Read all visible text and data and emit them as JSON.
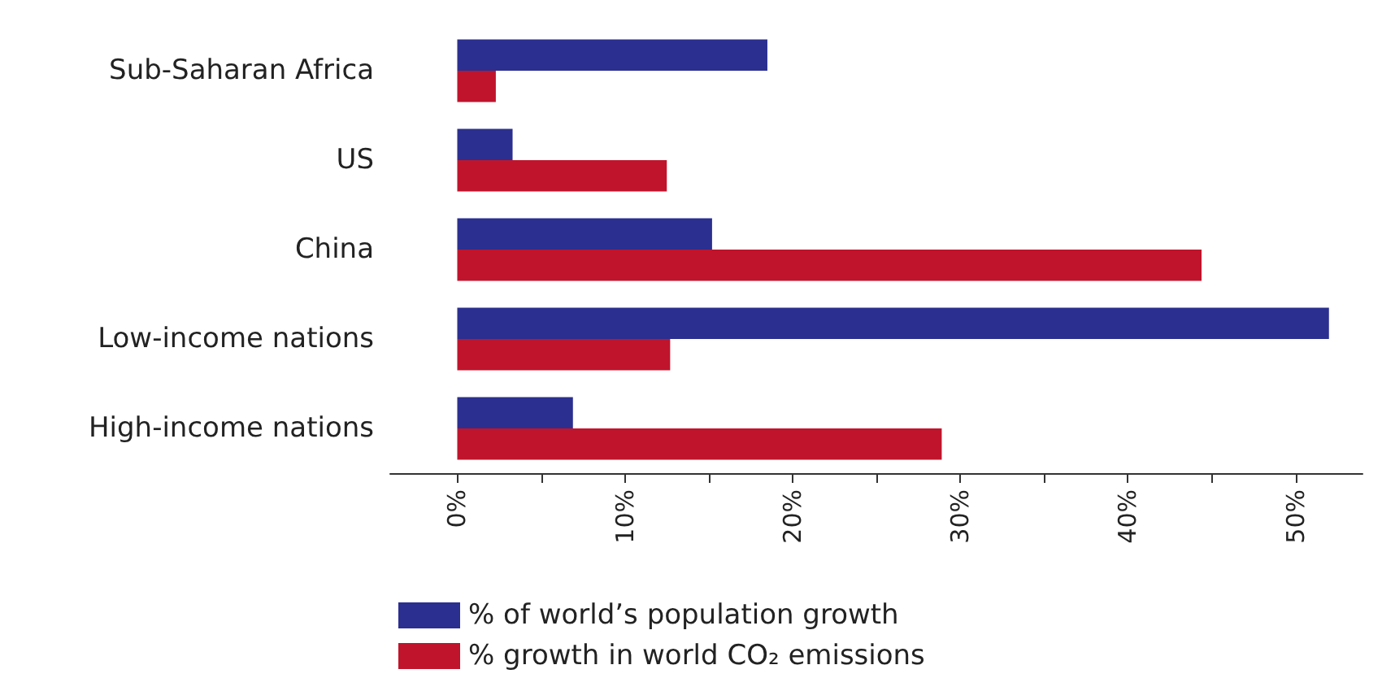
{
  "chart_data": {
    "type": "bar",
    "orientation": "horizontal",
    "categories": [
      "Sub-Saharan Africa",
      "US",
      "China",
      "Low-income nations",
      "High-income nations"
    ],
    "series": [
      {
        "name": "% of world’s population growth",
        "color": "#2b2f8f",
        "values": [
          18.5,
          3.3,
          15.2,
          52,
          6.9
        ]
      },
      {
        "name": "% growth in world CO₂ emissions",
        "color": "#c0142c",
        "values": [
          2.3,
          12.5,
          44.4,
          12.7,
          28.9
        ]
      }
    ],
    "xlim": [
      -4,
      54
    ],
    "xticks": [
      {
        "value": 0,
        "label": "0%"
      },
      {
        "value": 5,
        "label": null
      },
      {
        "value": 10,
        "label": "10%"
      },
      {
        "value": 15,
        "label": null
      },
      {
        "value": 20,
        "label": "20%"
      },
      {
        "value": 25,
        "label": null
      },
      {
        "value": 30,
        "label": "30%"
      },
      {
        "value": 35,
        "label": null
      },
      {
        "value": 40,
        "label": "40%"
      },
      {
        "value": 45,
        "label": null
      },
      {
        "value": 50,
        "label": "50%"
      }
    ],
    "grid": false,
    "legend": "bottom left"
  }
}
